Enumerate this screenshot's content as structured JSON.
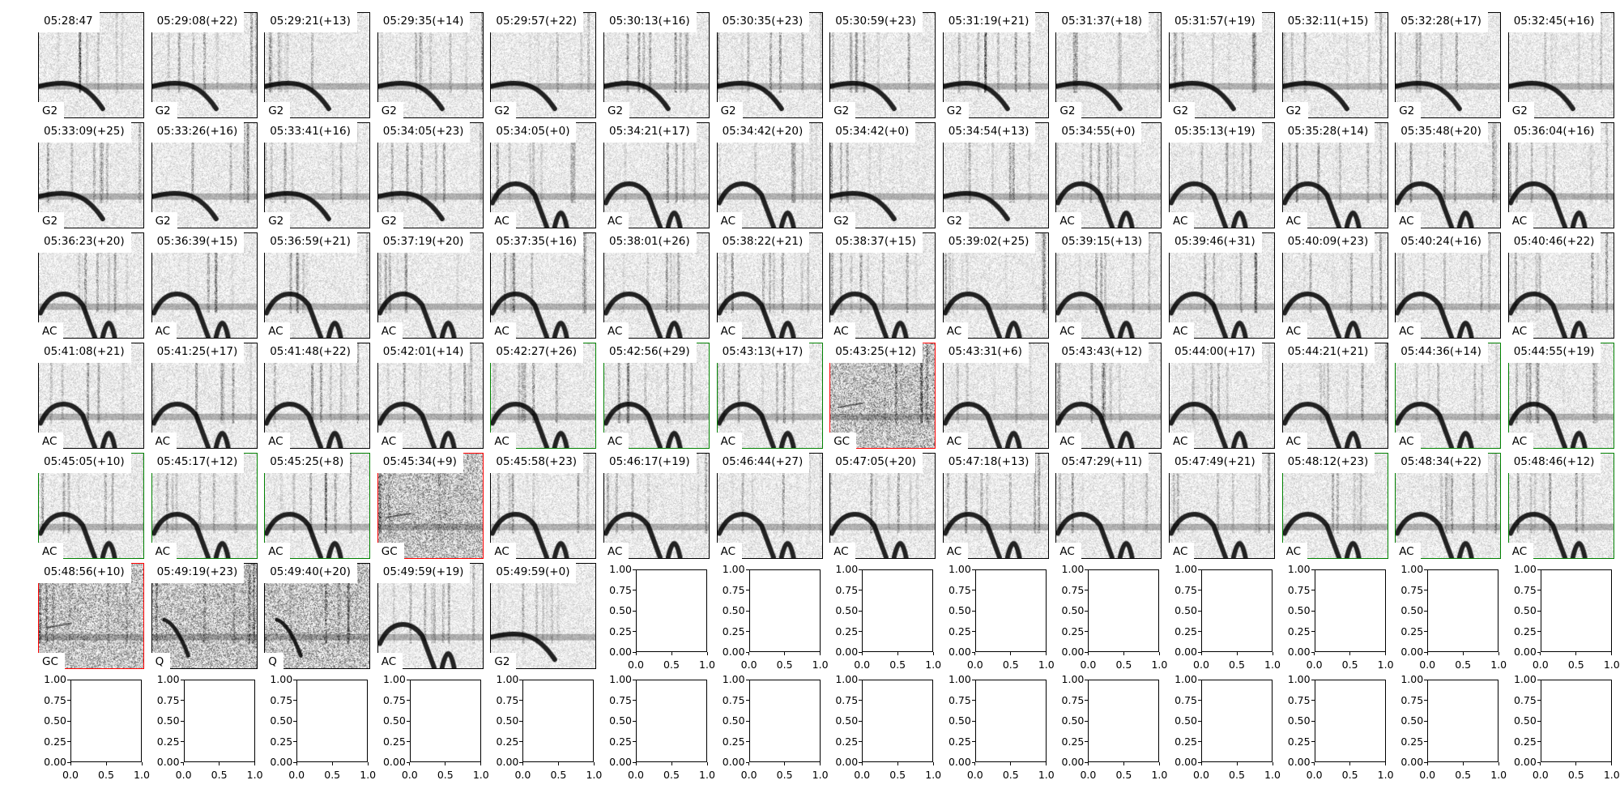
{
  "chart_data": {
    "type": "heatmap",
    "colormap": "gray_r",
    "border_colors": {
      "default": "#000000",
      "green": "#008000",
      "red": "#ff0000"
    },
    "panels": [
      {
        "title": "05:28:47",
        "label": "G2",
        "border": "default"
      },
      {
        "title": "05:29:08(+22)",
        "label": "G2",
        "border": "default"
      },
      {
        "title": "05:29:21(+13)",
        "label": "G2",
        "border": "default"
      },
      {
        "title": "05:29:35(+14)",
        "label": "G2",
        "border": "default"
      },
      {
        "title": "05:29:57(+22)",
        "label": "G2",
        "border": "default"
      },
      {
        "title": "05:30:13(+16)",
        "label": "G2",
        "border": "default"
      },
      {
        "title": "05:30:35(+23)",
        "label": "G2",
        "border": "default"
      },
      {
        "title": "05:30:59(+23)",
        "label": "G2",
        "border": "default"
      },
      {
        "title": "05:31:19(+21)",
        "label": "G2",
        "border": "default"
      },
      {
        "title": "05:31:37(+18)",
        "label": "G2",
        "border": "default"
      },
      {
        "title": "05:31:57(+19)",
        "label": "G2",
        "border": "default"
      },
      {
        "title": "05:32:11(+15)",
        "label": "G2",
        "border": "default"
      },
      {
        "title": "05:32:28(+17)",
        "label": "G2",
        "border": "default"
      },
      {
        "title": "05:32:45(+16)",
        "label": "G2",
        "border": "default"
      },
      {
        "title": "05:33:09(+25)",
        "label": "G2",
        "border": "default"
      },
      {
        "title": "05:33:26(+16)",
        "label": "G2",
        "border": "default"
      },
      {
        "title": "05:33:41(+16)",
        "label": "G2",
        "border": "default"
      },
      {
        "title": "05:34:05(+23)",
        "label": "G2",
        "border": "default"
      },
      {
        "title": "05:34:05(+0)",
        "label": "AC",
        "border": "default"
      },
      {
        "title": "05:34:21(+17)",
        "label": "AC",
        "border": "default"
      },
      {
        "title": "05:34:42(+20)",
        "label": "AC",
        "border": "default"
      },
      {
        "title": "05:34:42(+0)",
        "label": "G2",
        "border": "default"
      },
      {
        "title": "05:34:54(+13)",
        "label": "G2",
        "border": "default"
      },
      {
        "title": "05:34:55(+0)",
        "label": "AC",
        "border": "default"
      },
      {
        "title": "05:35:13(+19)",
        "label": "AC",
        "border": "default"
      },
      {
        "title": "05:35:28(+14)",
        "label": "AC",
        "border": "default"
      },
      {
        "title": "05:35:48(+20)",
        "label": "AC",
        "border": "default"
      },
      {
        "title": "05:36:04(+16)",
        "label": "AC",
        "border": "default"
      },
      {
        "title": "05:36:23(+20)",
        "label": "AC",
        "border": "default"
      },
      {
        "title": "05:36:39(+15)",
        "label": "AC",
        "border": "default"
      },
      {
        "title": "05:36:59(+21)",
        "label": "AC",
        "border": "default"
      },
      {
        "title": "05:37:19(+20)",
        "label": "AC",
        "border": "default"
      },
      {
        "title": "05:37:35(+16)",
        "label": "AC",
        "border": "default"
      },
      {
        "title": "05:38:01(+26)",
        "label": "AC",
        "border": "default"
      },
      {
        "title": "05:38:22(+21)",
        "label": "AC",
        "border": "default"
      },
      {
        "title": "05:38:37(+15)",
        "label": "AC",
        "border": "default"
      },
      {
        "title": "05:39:02(+25)",
        "label": "AC",
        "border": "default"
      },
      {
        "title": "05:39:15(+13)",
        "label": "AC",
        "border": "default"
      },
      {
        "title": "05:39:46(+31)",
        "label": "AC",
        "border": "default"
      },
      {
        "title": "05:40:09(+23)",
        "label": "AC",
        "border": "default"
      },
      {
        "title": "05:40:24(+16)",
        "label": "AC",
        "border": "default"
      },
      {
        "title": "05:40:46(+22)",
        "label": "AC",
        "border": "default"
      },
      {
        "title": "05:41:08(+21)",
        "label": "AC",
        "border": "default"
      },
      {
        "title": "05:41:25(+17)",
        "label": "AC",
        "border": "default"
      },
      {
        "title": "05:41:48(+22)",
        "label": "AC",
        "border": "default"
      },
      {
        "title": "05:42:01(+14)",
        "label": "AC",
        "border": "default"
      },
      {
        "title": "05:42:27(+26)",
        "label": "AC",
        "border": "green"
      },
      {
        "title": "05:42:56(+29)",
        "label": "AC",
        "border": "green"
      },
      {
        "title": "05:43:13(+17)",
        "label": "AC",
        "border": "green"
      },
      {
        "title": "05:43:25(+12)",
        "label": "GC",
        "border": "red"
      },
      {
        "title": "05:43:31(+6)",
        "label": "AC",
        "border": "default"
      },
      {
        "title": "05:43:43(+12)",
        "label": "AC",
        "border": "default"
      },
      {
        "title": "05:44:00(+17)",
        "label": "AC",
        "border": "default"
      },
      {
        "title": "05:44:21(+21)",
        "label": "AC",
        "border": "default"
      },
      {
        "title": "05:44:36(+14)",
        "label": "AC",
        "border": "green"
      },
      {
        "title": "05:44:55(+19)",
        "label": "AC",
        "border": "green"
      },
      {
        "title": "05:45:05(+10)",
        "label": "AC",
        "border": "green"
      },
      {
        "title": "05:45:17(+12)",
        "label": "AC",
        "border": "green"
      },
      {
        "title": "05:45:25(+8)",
        "label": "AC",
        "border": "green"
      },
      {
        "title": "05:45:34(+9)",
        "label": "GC",
        "border": "red"
      },
      {
        "title": "05:45:58(+23)",
        "label": "AC",
        "border": "default"
      },
      {
        "title": "05:46:17(+19)",
        "label": "AC",
        "border": "default"
      },
      {
        "title": "05:46:44(+27)",
        "label": "AC",
        "border": "default"
      },
      {
        "title": "05:47:05(+20)",
        "label": "AC",
        "border": "default"
      },
      {
        "title": "05:47:18(+13)",
        "label": "AC",
        "border": "default"
      },
      {
        "title": "05:47:29(+11)",
        "label": "AC",
        "border": "default"
      },
      {
        "title": "05:47:49(+21)",
        "label": "AC",
        "border": "default"
      },
      {
        "title": "05:48:12(+23)",
        "label": "AC",
        "border": "green"
      },
      {
        "title": "05:48:34(+22)",
        "label": "AC",
        "border": "green"
      },
      {
        "title": "05:48:46(+12)",
        "label": "AC",
        "border": "green"
      },
      {
        "title": "05:48:56(+10)",
        "label": "GC",
        "border": "red"
      },
      {
        "title": "05:49:19(+23)",
        "label": "Q",
        "border": "default"
      },
      {
        "title": "05:49:40(+20)",
        "label": "Q",
        "border": "default"
      },
      {
        "title": "05:49:59(+19)",
        "label": "AC",
        "border": "default"
      },
      {
        "title": "05:49:59(+0)",
        "label": "G2",
        "border": "default"
      }
    ],
    "empty_axes": {
      "count": 23,
      "xlim": [
        0,
        1
      ],
      "ylim": [
        0,
        1
      ],
      "xticks": [
        "0.0",
        "0.5",
        "1.0"
      ],
      "yticks": [
        "0.00",
        "0.25",
        "0.50",
        "0.75",
        "1.00"
      ]
    }
  }
}
